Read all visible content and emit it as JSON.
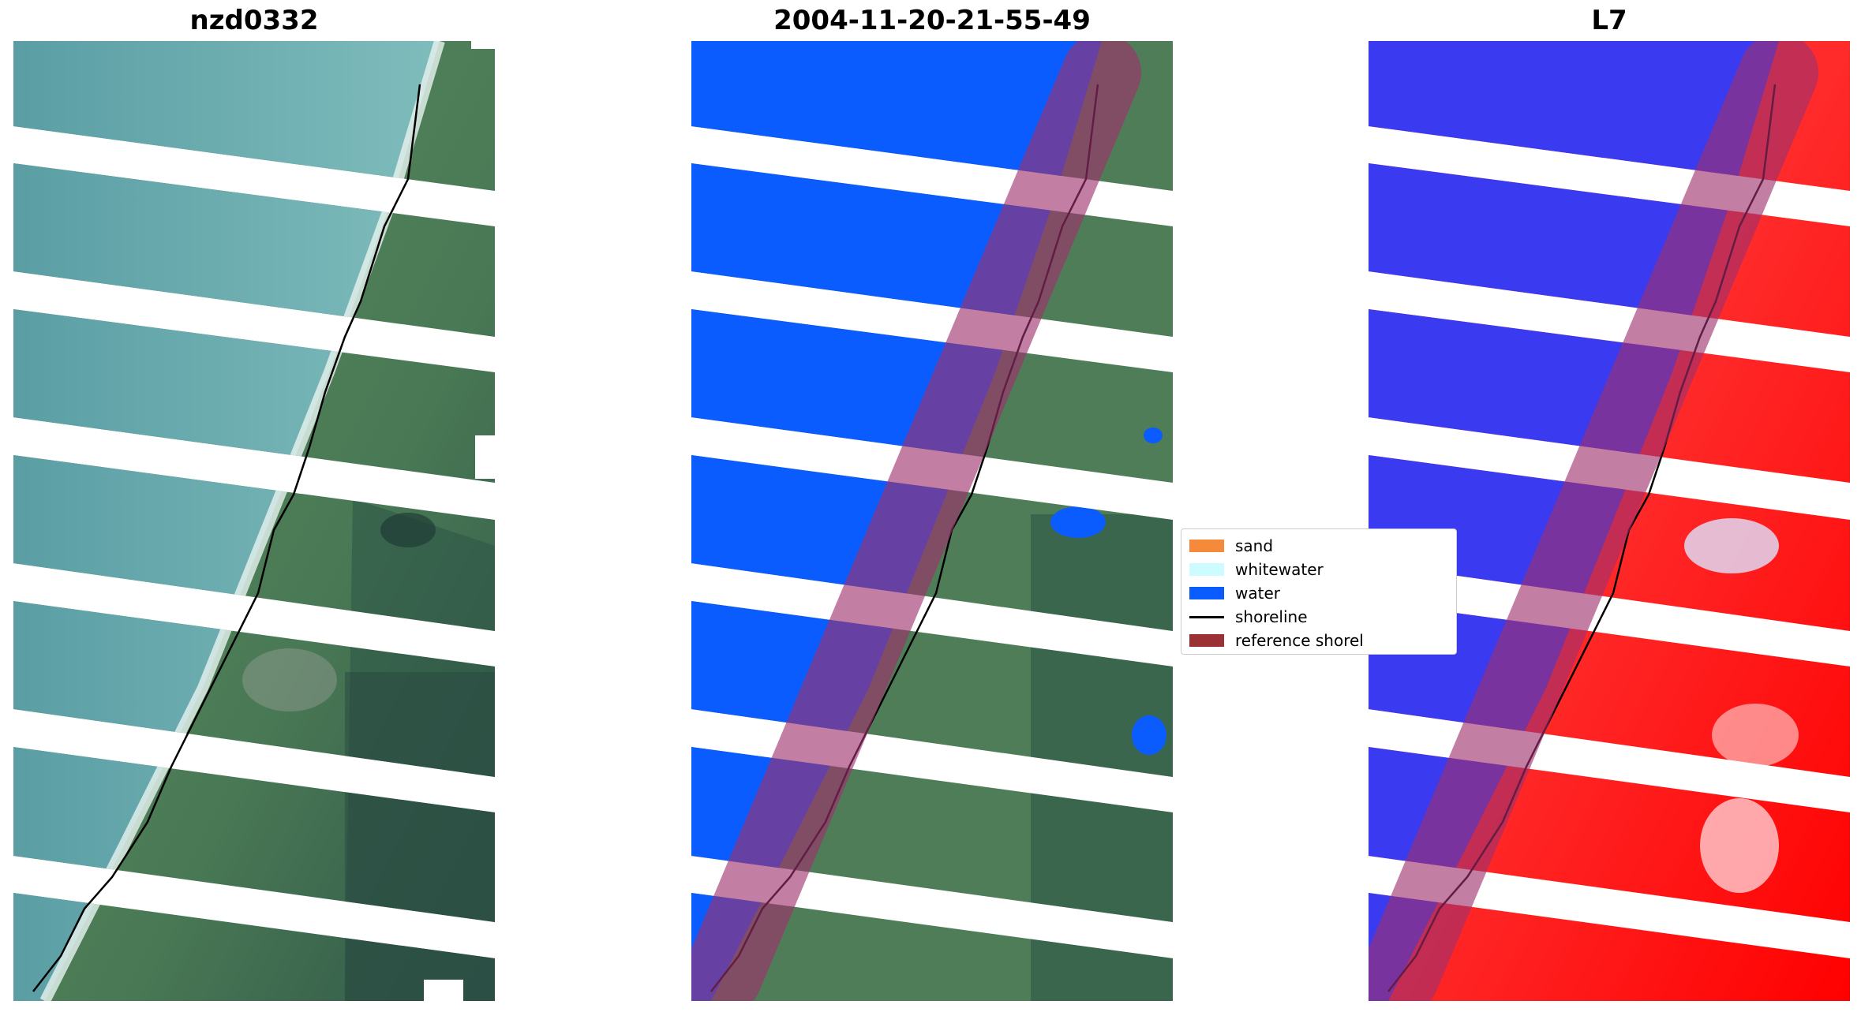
{
  "panels": [
    {
      "title": "nzd0332"
    },
    {
      "title": "2004-11-20-21-55-49"
    },
    {
      "title": "L7"
    }
  ],
  "legend": {
    "items": [
      {
        "label": "sand",
        "color": "#f58a3a"
      },
      {
        "label": "whitewater",
        "color": "#ccfcff"
      },
      {
        "label": "water",
        "color": "#0a5cff"
      },
      {
        "label": "shoreline",
        "color": "#000000"
      },
      {
        "label": "reference shorel",
        "color": "#9b3035"
      }
    ]
  },
  "colors": {
    "sea_rgb": "#5fa3a6",
    "land_rgb": "#4f7d58",
    "forest_rgb": "#2f5648",
    "water_class": "#0a5cff",
    "index_water": "#3a3af0",
    "index_land": "#ff1a1a",
    "buffer_overlay": "#a0306e"
  }
}
